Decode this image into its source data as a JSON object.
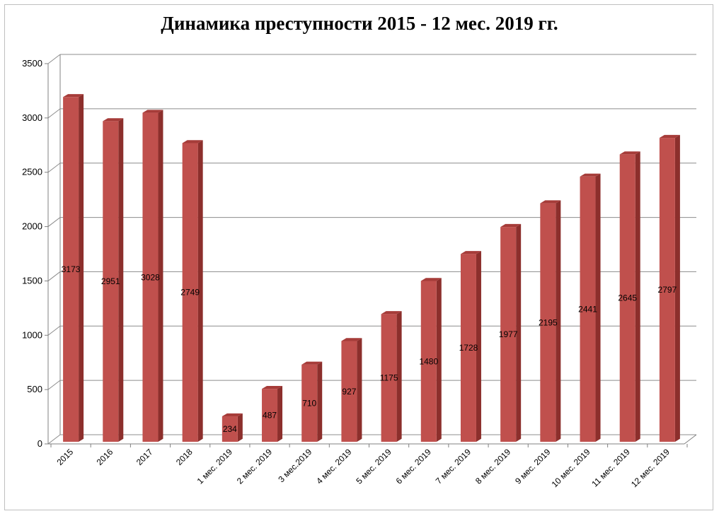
{
  "chart_data": {
    "type": "bar",
    "title": "Динамика преступности 2015 - 12 мес. 2019 гг.",
    "categories": [
      "2015",
      "2016",
      "2017",
      "2018",
      "1 мес. 2019",
      "2 мес. 2019",
      "3 мес.2019",
      "4 мес. 2019",
      "5 мес. 2019",
      "6 мес. 2019",
      "7 мес. 2019",
      "8 мес. 2019",
      "9 мес. 2019",
      "10 мес. 2019",
      "11 мес. 2019",
      "12 мес. 2019"
    ],
    "values": [
      3173,
      2951,
      3028,
      2749,
      234,
      487,
      710,
      927,
      1175,
      1480,
      1728,
      1977,
      2195,
      2441,
      2645,
      2797
    ],
    "ylim": [
      0,
      3500
    ],
    "yticks": [
      0,
      500,
      1000,
      1500,
      2000,
      2500,
      3000,
      3500
    ],
    "grid": true,
    "bar_color": "#c0504d",
    "bar_side_color": "#8c2f2c",
    "bar_top_color": "#a63c39",
    "style": "3d-column"
  }
}
